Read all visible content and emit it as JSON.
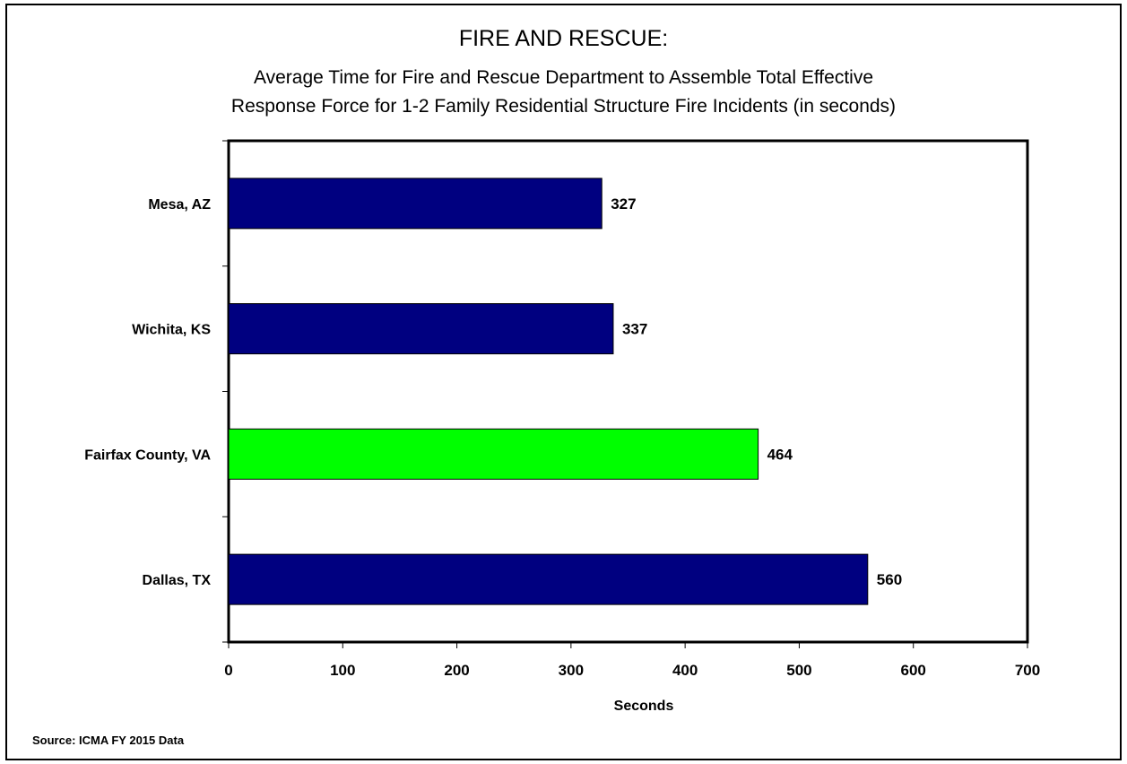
{
  "title": "FIRE AND RESCUE:",
  "subtitle_line1": "Average Time for Fire and Rescue Department to Assemble Total Effective",
  "subtitle_line2": "Response Force for 1-2 Family Residential Structure Fire Incidents (in seconds)",
  "source": "Source: ICMA FY 2015 Data",
  "colors": {
    "default_bar": "#000080",
    "highlight_bar": "#00FF00",
    "bar_border": "#000000"
  },
  "chart_data": {
    "type": "bar",
    "orientation": "horizontal",
    "categories": [
      "Mesa, AZ",
      "Wichita, KS",
      "Fairfax County, VA",
      "Dallas, TX"
    ],
    "values": [
      327,
      337,
      464,
      560
    ],
    "highlight": "Fairfax County, VA",
    "title": "FIRE AND RESCUE:",
    "xlabel": "Seconds",
    "ylabel": "",
    "xlim": [
      0,
      700
    ],
    "xticks": [
      "0",
      "100",
      "200",
      "300",
      "400",
      "500",
      "600",
      "700"
    ],
    "grid": false,
    "legend": "none"
  }
}
